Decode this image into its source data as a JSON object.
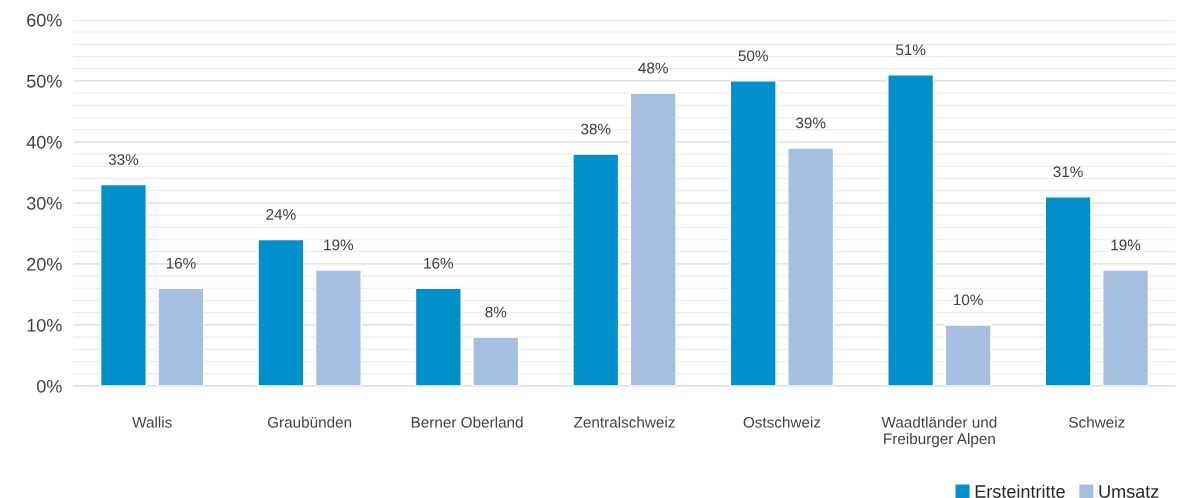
{
  "chart_data": {
    "type": "bar",
    "categories": [
      "Wallis",
      "Graubünden",
      "Berner Oberland",
      "Zentralschweiz",
      "Ostschweiz",
      "Waadtländer und\nFreiburger Alpen",
      "Schweiz"
    ],
    "series": [
      {
        "name": "Ersteintritte",
        "color": "#0091cd",
        "values": [
          33,
          24,
          16,
          38,
          50,
          51,
          31
        ],
        "value_labels": [
          "33%",
          "24%",
          "16%",
          "38%",
          "50%",
          "51%",
          "31%"
        ]
      },
      {
        "name": "Umsatz",
        "color": "#a5bfe1",
        "values": [
          16,
          19,
          8,
          48,
          39,
          10,
          19
        ],
        "value_labels": [
          "16%",
          "19%",
          "8%",
          "48%",
          "39%",
          "10%",
          "19%"
        ]
      }
    ],
    "ylim": [
      0,
      60
    ],
    "yticks": [
      {
        "value": 0,
        "label": "0%"
      },
      {
        "value": 2,
        "label": null
      },
      {
        "value": 4,
        "label": null
      },
      {
        "value": 6,
        "label": null
      },
      {
        "value": 8,
        "label": null
      },
      {
        "value": 10,
        "label": "10%"
      },
      {
        "value": 12,
        "label": null
      },
      {
        "value": 14,
        "label": null
      },
      {
        "value": 16,
        "label": null
      },
      {
        "value": 18,
        "label": null
      },
      {
        "value": 20,
        "label": "20%"
      },
      {
        "value": 22,
        "label": null
      },
      {
        "value": 24,
        "label": null
      },
      {
        "value": 26,
        "label": null
      },
      {
        "value": 28,
        "label": null
      },
      {
        "value": 30,
        "label": "30%"
      },
      {
        "value": 32,
        "label": null
      },
      {
        "value": 34,
        "label": null
      },
      {
        "value": 36,
        "label": null
      },
      {
        "value": 38,
        "label": null
      },
      {
        "value": 40,
        "label": "40%"
      },
      {
        "value": 42,
        "label": null
      },
      {
        "value": 44,
        "label": null
      },
      {
        "value": 46,
        "label": null
      },
      {
        "value": 48,
        "label": null
      },
      {
        "value": 50,
        "label": "50%"
      },
      {
        "value": 52,
        "label": null
      },
      {
        "value": 54,
        "label": null
      },
      {
        "value": 56,
        "label": null
      },
      {
        "value": 58,
        "label": null
      },
      {
        "value": 60,
        "label": "60%"
      }
    ],
    "grid": "y",
    "legend": "bottom right"
  }
}
